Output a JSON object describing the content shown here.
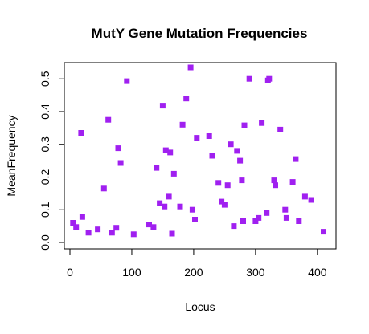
{
  "chart_data": {
    "type": "scatter",
    "title": "MutY Gene Mutation Frequencies",
    "xlabel": "Locus",
    "ylabel": "MeanFrequency",
    "xlim": [
      0,
      421
    ],
    "ylim": [
      0,
      0.53
    ],
    "xticks": [
      0,
      100,
      200,
      300,
      400
    ],
    "yticks": [
      0.0,
      0.1,
      0.2,
      0.3,
      0.4,
      0.5
    ],
    "xtick_labels": [
      "0",
      "100",
      "200",
      "300",
      "400"
    ],
    "ytick_labels": [
      "0.0",
      "0.1",
      "0.2",
      "0.3",
      "0.4",
      "0.5"
    ],
    "marker": "square",
    "color": "#a020f0",
    "grid": false,
    "legend": false,
    "series": [
      {
        "name": "",
        "x": [
          5,
          10,
          18,
          20,
          30,
          45,
          55,
          62,
          68,
          75,
          78,
          82,
          92,
          103,
          128,
          135,
          140,
          145,
          150,
          153,
          155,
          160,
          162,
          165,
          168,
          178,
          182,
          188,
          195,
          198,
          202,
          205,
          225,
          230,
          240,
          245,
          250,
          255,
          260,
          265,
          270,
          275,
          278,
          280,
          282,
          290,
          300,
          305,
          310,
          318,
          320,
          322,
          330,
          332,
          340,
          348,
          350,
          360,
          365,
          370,
          380,
          390,
          410
        ],
        "y": [
          0.06,
          0.047,
          0.335,
          0.078,
          0.03,
          0.04,
          0.165,
          0.375,
          0.03,
          0.045,
          0.288,
          0.243,
          0.493,
          0.025,
          0.055,
          0.047,
          0.228,
          0.12,
          0.418,
          0.11,
          0.282,
          0.14,
          0.275,
          0.027,
          0.21,
          0.11,
          0.36,
          0.44,
          0.535,
          0.1,
          0.07,
          0.32,
          0.325,
          0.265,
          0.182,
          0.125,
          0.115,
          0.175,
          0.3,
          0.05,
          0.28,
          0.25,
          0.19,
          0.065,
          0.358,
          0.5,
          0.065,
          0.075,
          0.365,
          0.09,
          0.495,
          0.5,
          0.19,
          0.175,
          0.345,
          0.1,
          0.075,
          0.185,
          0.255,
          0.065,
          0.14,
          0.13,
          0.033
        ]
      }
    ]
  }
}
